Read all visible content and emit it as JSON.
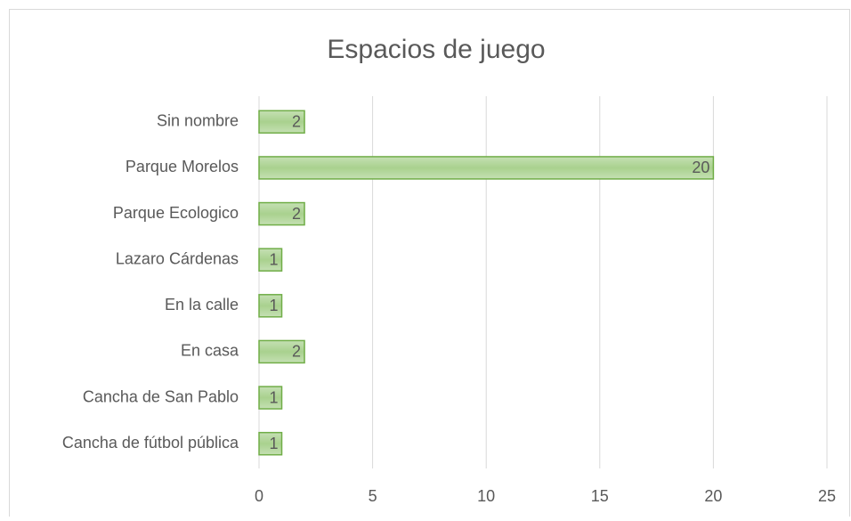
{
  "chart_data": {
    "type": "bar",
    "orientation": "horizontal",
    "title": "Espacios de juego",
    "categories": [
      "Sin nombre",
      "Parque Morelos",
      "Parque Ecologico",
      "Lazaro Cárdenas",
      "En la calle",
      "En casa",
      "Cancha de San Pablo",
      "Cancha de fútbol pública"
    ],
    "values": [
      2,
      20,
      2,
      1,
      1,
      2,
      1,
      1
    ],
    "color": "#a9d18e",
    "edge_color": "#70ad47",
    "xlim": [
      0,
      25
    ],
    "xticks": [
      0,
      5,
      10,
      15,
      20,
      25
    ],
    "grid": true,
    "data_labels": true
  }
}
